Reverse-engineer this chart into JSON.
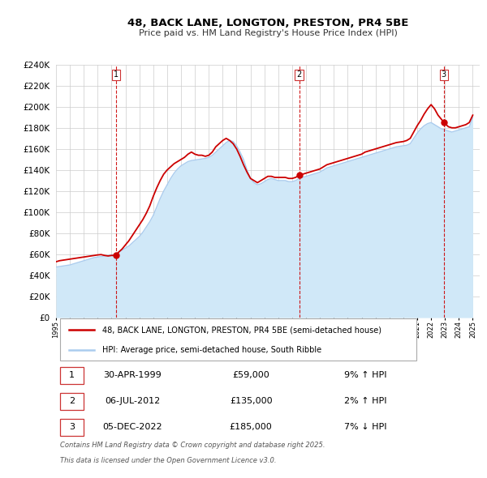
{
  "title": "48, BACK LANE, LONGTON, PRESTON, PR4 5BE",
  "subtitle": "Price paid vs. HM Land Registry's House Price Index (HPI)",
  "legend_line1": "48, BACK LANE, LONGTON, PRESTON, PR4 5BE (semi-detached house)",
  "legend_line2": "HPI: Average price, semi-detached house, South Ribble",
  "footer1": "Contains HM Land Registry data © Crown copyright and database right 2025.",
  "footer2": "This data is licensed under the Open Government Licence v3.0.",
  "sale_color": "#cc0000",
  "hpi_color": "#aaccee",
  "hpi_fill_color": "#d0e8f8",
  "xmin": 1995.0,
  "xmax": 2025.5,
  "ymin": 0,
  "ymax": 240000,
  "ytick_interval": 20000,
  "transactions": [
    {
      "num": 1,
      "date": "30-APR-1999",
      "price": 59000,
      "pct": "9%",
      "dir": "↑",
      "year": 1999.33
    },
    {
      "num": 2,
      "date": "06-JUL-2012",
      "price": 135000,
      "pct": "2%",
      "dir": "↑",
      "year": 2012.5
    },
    {
      "num": 3,
      "date": "05-DEC-2022",
      "price": 185000,
      "pct": "7%",
      "dir": "↓",
      "year": 2022.92
    }
  ],
  "hpi_years": [
    1995.0,
    1995.25,
    1995.5,
    1995.75,
    1996.0,
    1996.25,
    1996.5,
    1996.75,
    1997.0,
    1997.25,
    1997.5,
    1997.75,
    1998.0,
    1998.25,
    1998.5,
    1998.75,
    1999.0,
    1999.25,
    1999.5,
    1999.75,
    2000.0,
    2000.25,
    2000.5,
    2000.75,
    2001.0,
    2001.25,
    2001.5,
    2001.75,
    2002.0,
    2002.25,
    2002.5,
    2002.75,
    2003.0,
    2003.25,
    2003.5,
    2003.75,
    2004.0,
    2004.25,
    2004.5,
    2004.75,
    2005.0,
    2005.25,
    2005.5,
    2005.75,
    2006.0,
    2006.25,
    2006.5,
    2006.75,
    2007.0,
    2007.25,
    2007.5,
    2007.75,
    2008.0,
    2008.25,
    2008.5,
    2008.75,
    2009.0,
    2009.25,
    2009.5,
    2009.75,
    2010.0,
    2010.25,
    2010.5,
    2010.75,
    2011.0,
    2011.25,
    2011.5,
    2011.75,
    2012.0,
    2012.25,
    2012.5,
    2012.75,
    2013.0,
    2013.25,
    2013.5,
    2013.75,
    2014.0,
    2014.25,
    2014.5,
    2014.75,
    2015.0,
    2015.25,
    2015.5,
    2015.75,
    2016.0,
    2016.25,
    2016.5,
    2016.75,
    2017.0,
    2017.25,
    2017.5,
    2017.75,
    2018.0,
    2018.25,
    2018.5,
    2018.75,
    2019.0,
    2019.25,
    2019.5,
    2019.75,
    2020.0,
    2020.25,
    2020.5,
    2020.75,
    2021.0,
    2021.25,
    2021.5,
    2021.75,
    2022.0,
    2022.25,
    2022.5,
    2022.75,
    2023.0,
    2023.25,
    2023.5,
    2023.75,
    2024.0,
    2024.25,
    2024.5,
    2024.75,
    2025.0
  ],
  "hpi_vals": [
    48000,
    48500,
    49000,
    49500,
    50000,
    51000,
    52000,
    53000,
    54000,
    55000,
    56000,
    57000,
    57500,
    58000,
    58500,
    59000,
    59500,
    60000,
    62000,
    64000,
    66000,
    68000,
    71000,
    74000,
    77000,
    81000,
    86000,
    91000,
    97000,
    105000,
    113000,
    120000,
    126000,
    132000,
    137000,
    141000,
    144000,
    146000,
    148000,
    149000,
    149500,
    150000,
    150500,
    151000,
    152000,
    154000,
    157000,
    160000,
    163000,
    166000,
    168000,
    167000,
    163000,
    157000,
    150000,
    140000,
    132000,
    128000,
    126000,
    127000,
    129000,
    131000,
    132000,
    131000,
    130000,
    130000,
    130000,
    129000,
    129000,
    130000,
    132000,
    133000,
    134000,
    135000,
    136000,
    137000,
    138000,
    140000,
    142000,
    143000,
    144000,
    145000,
    146000,
    147000,
    148000,
    149000,
    150000,
    151000,
    152000,
    153000,
    154000,
    155000,
    156000,
    157000,
    158000,
    159000,
    160000,
    161000,
    162000,
    162500,
    163000,
    163500,
    165000,
    170000,
    175000,
    179000,
    182000,
    184000,
    185000,
    183000,
    181000,
    179000,
    178000,
    177000,
    176000,
    177000,
    178000,
    179000,
    180000,
    181000,
    190000
  ],
  "price_years": [
    1995.0,
    1995.25,
    1995.5,
    1995.75,
    1996.0,
    1996.25,
    1996.5,
    1996.75,
    1997.0,
    1997.25,
    1997.5,
    1997.75,
    1998.0,
    1998.25,
    1998.5,
    1998.75,
    1999.0,
    1999.25,
    1999.33,
    1999.5,
    1999.75,
    2000.0,
    2000.25,
    2000.5,
    2000.75,
    2001.0,
    2001.25,
    2001.5,
    2001.75,
    2002.0,
    2002.25,
    2002.5,
    2002.75,
    2003.0,
    2003.25,
    2003.5,
    2003.75,
    2004.0,
    2004.25,
    2004.5,
    2004.75,
    2005.0,
    2005.25,
    2005.5,
    2005.75,
    2006.0,
    2006.25,
    2006.5,
    2006.75,
    2007.0,
    2007.25,
    2007.5,
    2007.75,
    2008.0,
    2008.25,
    2008.5,
    2008.75,
    2009.0,
    2009.25,
    2009.5,
    2009.75,
    2010.0,
    2010.25,
    2010.5,
    2010.75,
    2011.0,
    2011.25,
    2011.5,
    2011.75,
    2012.0,
    2012.25,
    2012.5,
    2012.75,
    2013.0,
    2013.25,
    2013.5,
    2013.75,
    2014.0,
    2014.25,
    2014.5,
    2014.75,
    2015.0,
    2015.25,
    2015.5,
    2015.75,
    2016.0,
    2016.25,
    2016.5,
    2016.75,
    2017.0,
    2017.25,
    2017.5,
    2017.75,
    2018.0,
    2018.25,
    2018.5,
    2018.75,
    2019.0,
    2019.25,
    2019.5,
    2019.75,
    2020.0,
    2020.25,
    2020.5,
    2020.75,
    2021.0,
    2021.25,
    2021.5,
    2021.75,
    2022.0,
    2022.25,
    2022.5,
    2022.75,
    2022.92,
    2023.0,
    2023.25,
    2023.5,
    2023.75,
    2024.0,
    2024.25,
    2024.5,
    2024.75,
    2025.0
  ],
  "price_vals": [
    53000,
    54000,
    54500,
    55000,
    55500,
    56000,
    56500,
    57000,
    57500,
    58000,
    58500,
    59000,
    59500,
    59800,
    59000,
    58500,
    59000,
    59000,
    59000,
    62000,
    65000,
    69000,
    73000,
    78000,
    83000,
    88000,
    93000,
    99000,
    106000,
    115000,
    123000,
    130000,
    136000,
    140000,
    143000,
    146000,
    148000,
    150000,
    152000,
    155000,
    157000,
    155000,
    154000,
    154000,
    153000,
    154000,
    157000,
    162000,
    165000,
    168000,
    170000,
    168000,
    165000,
    160000,
    153000,
    145000,
    138000,
    132000,
    130000,
    128000,
    130000,
    132000,
    134000,
    134000,
    133000,
    133000,
    133000,
    133000,
    132000,
    132000,
    133000,
    135000,
    136000,
    137000,
    138000,
    139000,
    140000,
    141000,
    143000,
    145000,
    146000,
    147000,
    148000,
    149000,
    150000,
    151000,
    152000,
    153000,
    154000,
    155000,
    157000,
    158000,
    159000,
    160000,
    161000,
    162000,
    163000,
    164000,
    165000,
    166000,
    166500,
    167000,
    168000,
    170000,
    176000,
    182000,
    187000,
    193000,
    198000,
    202000,
    198000,
    192000,
    188000,
    185000,
    184000,
    181000,
    180000,
    180000,
    181000,
    182000,
    183000,
    185000,
    192000
  ]
}
